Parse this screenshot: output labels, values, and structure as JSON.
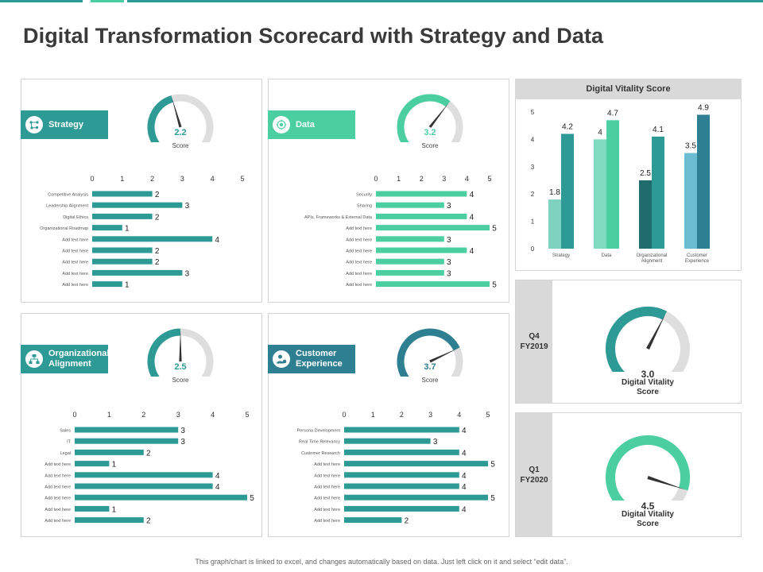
{
  "title": "Digital Transformation Scorecard with Strategy and Data",
  "footer": "This graph/chart is linked to excel, and changes automatically based on data. Just left click on it and select “edit data”.",
  "colors": {
    "teal": "#2e9a95",
    "mint": "#4ccfa0",
    "steel": "#2f7f92",
    "dark_teal": "#1f6b6d",
    "light_mint": "#7fd8c5",
    "light_blue": "#6bbcd0",
    "gray": "#dedede"
  },
  "panels": [
    {
      "label": "Strategy",
      "icon": "strategy-icon",
      "gauge": {
        "value": 2.2,
        "display": "2.2",
        "sub": "Score"
      }
    },
    {
      "label": "Data",
      "icon": "data-icon",
      "gauge": {
        "value": 3.2,
        "display": "3.2",
        "sub": "Score"
      }
    },
    {
      "label": "Organizational\nAlignment",
      "icon": "organization-icon",
      "gauge": {
        "value": 2.5,
        "display": "2.5",
        "sub": "Score"
      }
    },
    {
      "label": "Customer\nExperience",
      "icon": "customer-icon",
      "gauge": {
        "value": 3.7,
        "display": "3.7",
        "sub": "Score"
      }
    }
  ],
  "vitality": {
    "title": "Digital Vitality Score",
    "quarters": [
      {
        "label_line1": "Q4",
        "label_line2": "FY2019",
        "value": 3.0,
        "display": "3.0",
        "sub_line1": "Digital Vitality",
        "sub_line2": "Score"
      },
      {
        "label_line1": "Q1",
        "label_line2": "FY2020",
        "value": 4.5,
        "display": "4.5",
        "sub_line1": "Digital Vitality",
        "sub_line2": "Score"
      }
    ]
  },
  "chart_data": [
    {
      "type": "bar",
      "orientation": "horizontal",
      "title": "Strategy",
      "categories": [
        "Competitive Analysis",
        "Leadership Alignment",
        "Digital Ethics",
        "Organizational Roadmap",
        "Add text here",
        "Add text here",
        "Add text here",
        "Add text here",
        "Add text here"
      ],
      "values": [
        2,
        3,
        2,
        1,
        4,
        2,
        2,
        3,
        1
      ],
      "xlim": [
        0,
        5
      ],
      "ticks": [
        "0",
        "1",
        "2",
        "3",
        "4",
        "5"
      ]
    },
    {
      "type": "bar",
      "orientation": "horizontal",
      "title": "Data",
      "categories": [
        "Security",
        "Sharing",
        "APIs, Frameworks & External Data",
        "Add text here",
        "Add text here",
        "Add text here",
        "Add text here",
        "Add text here",
        "Add text here"
      ],
      "values": [
        4,
        3,
        4,
        5,
        3,
        4,
        3,
        3,
        5
      ],
      "xlim": [
        0,
        5
      ],
      "ticks": [
        "0",
        "1",
        "2",
        "3",
        "4",
        "5"
      ]
    },
    {
      "type": "bar",
      "orientation": "horizontal",
      "title": "Organizational Alignment",
      "categories": [
        "Sales",
        "IT",
        "Legal",
        "Add text here",
        "Add text here",
        "Add text here",
        "Add text here",
        "Add text here",
        "Add text here"
      ],
      "values": [
        3,
        3,
        2,
        1,
        4,
        4,
        5,
        1,
        2
      ],
      "xlim": [
        0,
        5
      ],
      "ticks": [
        "0",
        "1",
        "2",
        "3",
        "4",
        "5"
      ]
    },
    {
      "type": "bar",
      "orientation": "horizontal",
      "title": "Customer Experience",
      "categories": [
        "Persona Development",
        "Real Time Relevancy",
        "Customer Research",
        "Add text here",
        "Add text here",
        "Add text here",
        "Add text here",
        "Add text here",
        "Add text here"
      ],
      "values": [
        4,
        3,
        4,
        5,
        4,
        4,
        5,
        4,
        2
      ],
      "xlim": [
        0,
        5
      ],
      "ticks": [
        "0",
        "1",
        "2",
        "3",
        "4",
        "5"
      ]
    },
    {
      "type": "bar",
      "title": "Digital Vitality Score",
      "categories": [
        "Strategy",
        "Data",
        "Organizational\nAlignment",
        "Customer\nExperience"
      ],
      "series": [
        {
          "name": "Q4 FY2019",
          "values": [
            1.8,
            4,
            2.5,
            3.5
          ],
          "labels": [
            "1.8",
            "4",
            "2.5",
            "3.5"
          ]
        },
        {
          "name": "Q1 FY2020",
          "values": [
            4.2,
            4.7,
            4.1,
            4.9
          ],
          "labels": [
            "4.2",
            "4.7",
            "4.1",
            "4.9"
          ]
        }
      ],
      "ylim": [
        0,
        5
      ],
      "yticks": [
        "0",
        "1",
        "2",
        "3",
        "4",
        "5"
      ]
    }
  ]
}
